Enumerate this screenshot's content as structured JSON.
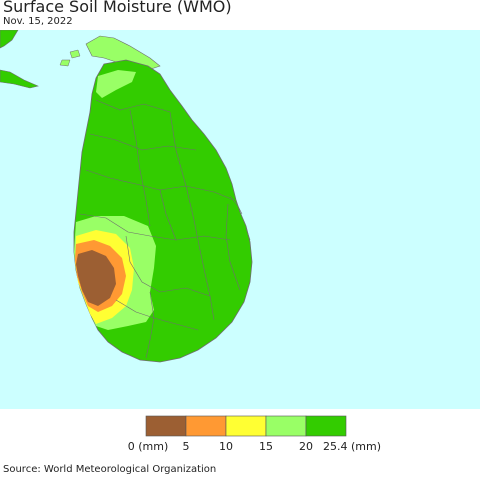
{
  "header": {
    "title": "Surface Soil Moisture (WMO)",
    "date": "Nov. 15, 2022"
  },
  "map": {
    "colors": {
      "sea": "#ccffff",
      "land": "#33cc00",
      "border": "#6e6e6e",
      "class_0_5": "#9c5f33",
      "class_5_10": "#ff9933",
      "class_10_15": "#ffff33",
      "class_15_20": "#99ff66",
      "class_20_25": "#33cc00"
    }
  },
  "legend": {
    "labels": [
      "0 (mm)",
      "5",
      "10",
      "15",
      "20",
      "25.4 (mm)"
    ],
    "colors": [
      "#9c5f33",
      "#ff9933",
      "#ffff33",
      "#99ff66",
      "#33cc00"
    ]
  },
  "footer": {
    "source": "Source: World Meteorological Organization"
  }
}
